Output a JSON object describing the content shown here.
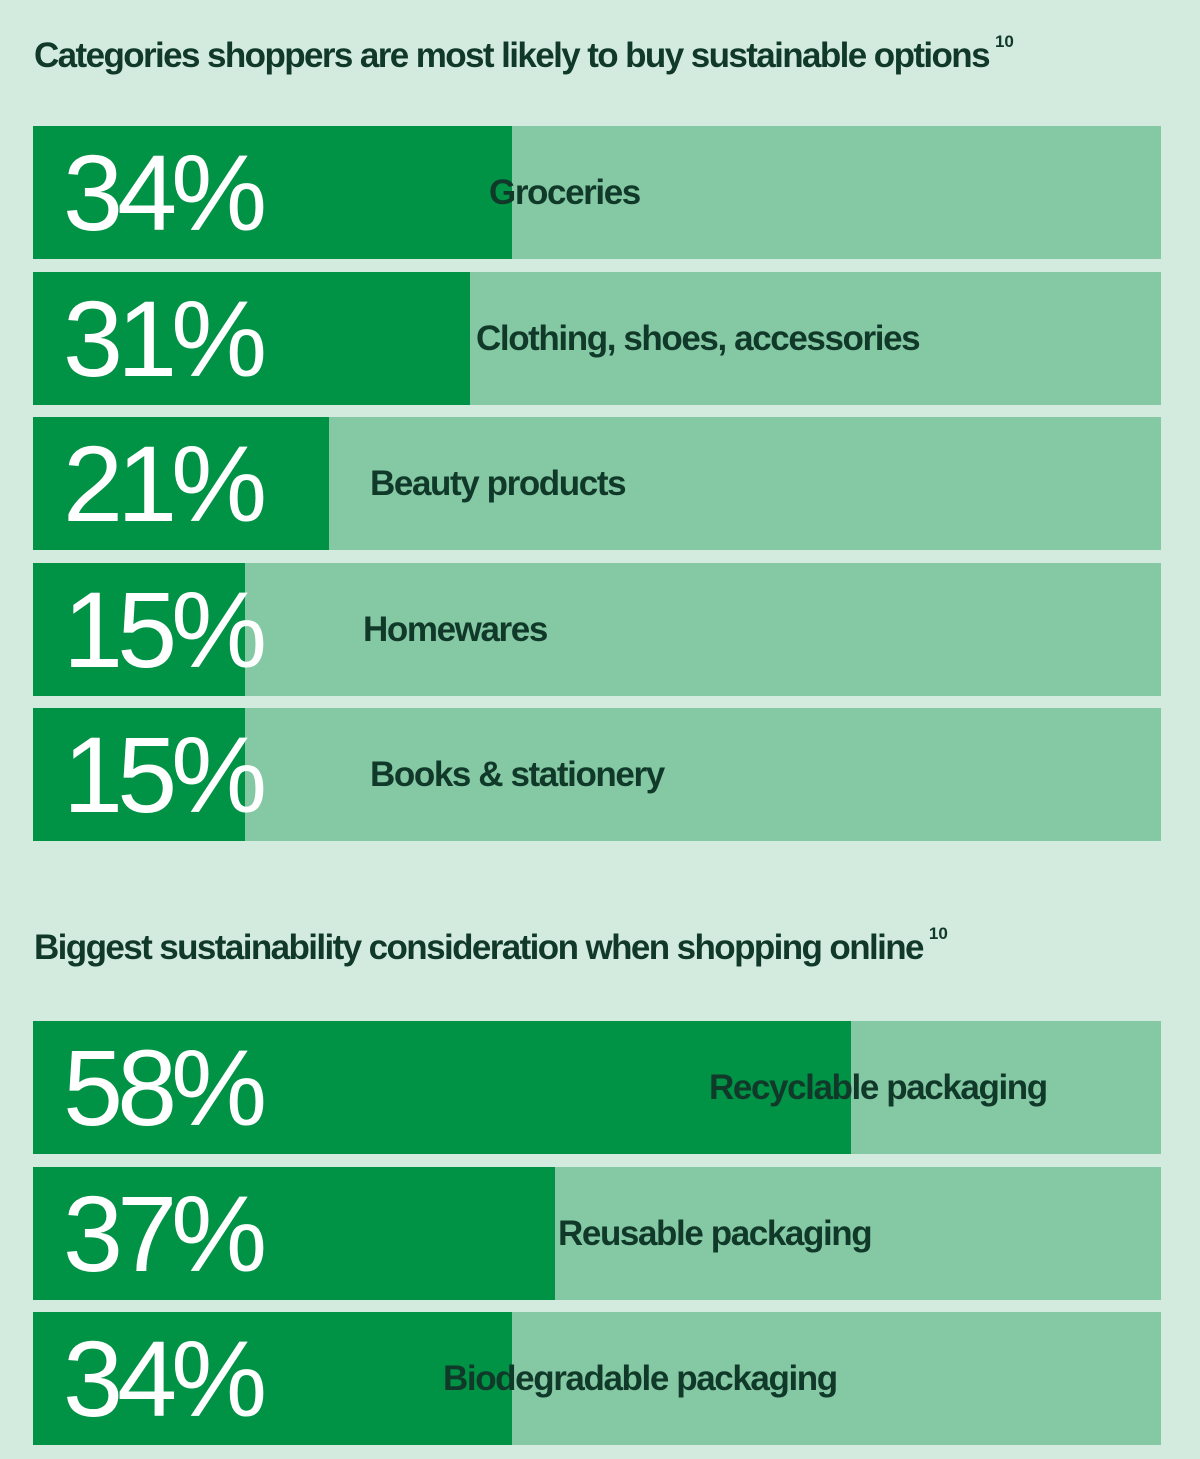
{
  "colors": {
    "background": "#d2ebde",
    "bar_track": "#84c9a3",
    "bar_fill": "#009245",
    "label_text": "#10392a",
    "value_text": "#ffffff"
  },
  "chart_data": [
    {
      "type": "bar",
      "orientation": "horizontal",
      "title": "Categories shoppers are most likely to buy sustainable options",
      "title_footnote": "10",
      "xlim": [
        0,
        100
      ],
      "grid": false,
      "categories": [
        "Groceries",
        "Clothing, shoes, accessories",
        "Beauty products",
        "Homewares",
        "Books & stationery"
      ],
      "values": [
        34,
        31,
        21,
        15,
        15
      ],
      "value_labels": [
        "34%",
        "31%",
        "21%",
        "15%",
        "15%"
      ]
    },
    {
      "type": "bar",
      "orientation": "horizontal",
      "title": "Biggest sustainability consideration when shopping online",
      "title_footnote": "10",
      "xlim": [
        0,
        100
      ],
      "grid": false,
      "categories": [
        "Recyclable packaging",
        "Reusable packaging",
        "Biodegradable packaging"
      ],
      "values": [
        58,
        37,
        34
      ],
      "value_labels": [
        "58%",
        "37%",
        "34%"
      ]
    }
  ]
}
